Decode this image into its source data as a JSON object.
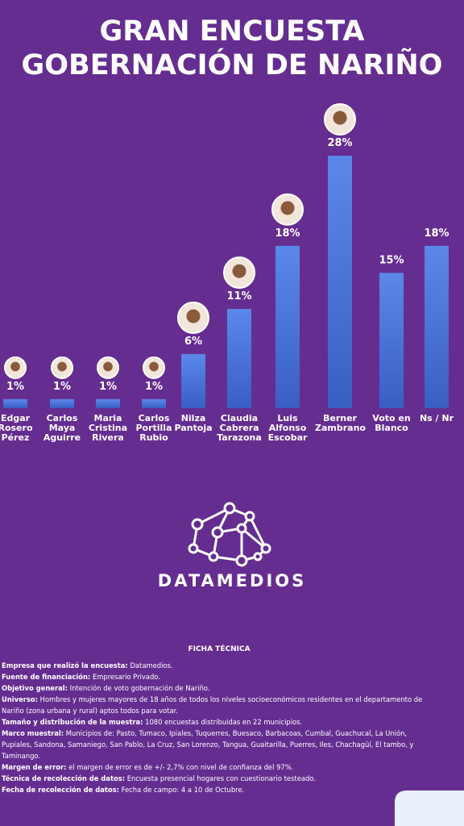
{
  "chart_data": {
    "type": "bar",
    "title": "GRAN ENCUESTA GOBERNACIÓN DE NARIÑO",
    "categories": [
      "Edgar Rosero Pérez",
      "Carlos Maya Aguirre",
      "Maria Cristina Rivera",
      "Carlos Portilla Rubio",
      "Nilza Pantoja",
      "Claudia Cabrera Tarazona",
      "Luis Alfonso Escobar",
      "Berner Zambrano",
      "Voto en Blanco",
      "Ns / Nr"
    ],
    "values": [
      1,
      1,
      1,
      1,
      6,
      11,
      18,
      28,
      15,
      18
    ],
    "value_labels": [
      "1%",
      "1%",
      "1%",
      "1%",
      "6%",
      "11%",
      "18%",
      "28%",
      "15%",
      "18%"
    ],
    "color": "#4a74d9"
  },
  "logo": {
    "name": "DATAMEDIOS"
  },
  "ficha": {
    "title": "FICHA TÉCNICA",
    "rows": [
      [
        "Empresa que realizó la encuesta:",
        "Datamedios."
      ],
      [
        "Fuente de financiación:",
        "Empresario Privado."
      ],
      [
        "Objetivo general:",
        "Intención de voto gobernación de Nariño."
      ],
      [
        "Universo:",
        "Hombres y mujeres mayores de 18 años de todos los niveles socioeconómicos residentes en el departamento de Nariño (zona urbana y rural) aptos todos para votar."
      ],
      [
        "Tamaño y distribución de la muestra:",
        "1080 encuestas distribuidas en 22 municipios."
      ],
      [
        "Marco muestral:",
        "Municipios de: Pasto, Tumaco, Ipiales, Tuquerres, Buesaco, Barbacoas, Cumbal, Guachucal, La Unión, Pupiales, Sandona, Samaniego, San Pablo, La Cruz, San Lorenzo, Tangua, Guaitarilla, Puerres, Iles, Chachagüí, El tambo, y Taminango."
      ],
      [
        "Margen de error:",
        "el margen de error es de +/- 2,7% con nivel de confianza del 97%."
      ],
      [
        "Técnica de recolección de datos:",
        "Encuesta presencial hogares con cuestionario testeado."
      ],
      [
        "Fecha de recolección de datos:",
        "Fecha de campo: 4 a 10 de Octubre."
      ]
    ]
  }
}
